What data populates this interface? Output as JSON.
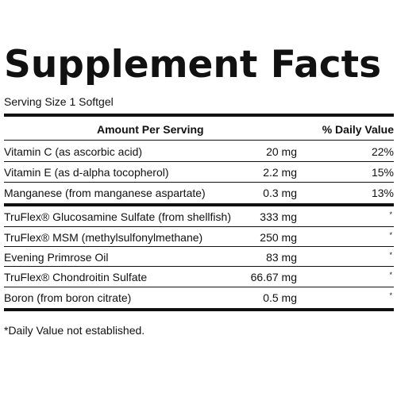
{
  "title": "Supplement Facts",
  "serving_size": "Serving Size 1 Softgel",
  "header": {
    "amount": "Amount Per Serving",
    "dv": "% Daily Value"
  },
  "rows": [
    {
      "name": "Vitamin C (as ascorbic acid)",
      "amount": "20 mg",
      "dv": "22%"
    },
    {
      "name": "Vitamin E (as d-alpha tocopherol)",
      "amount": "2.2 mg",
      "dv": "15%"
    },
    {
      "name": "Manganese (from manganese aspartate)",
      "amount": "0.3 mg",
      "dv": "13%"
    },
    {
      "name": "TruFlex® Glucosamine Sulfate (from shellfish)",
      "amount": "333 mg",
      "dv": "*"
    },
    {
      "name": "TruFlex® MSM (methylsulfonylmethane)",
      "amount": "250 mg",
      "dv": "*"
    },
    {
      "name": "Evening Primrose Oil",
      "amount": "83 mg",
      "dv": "*"
    },
    {
      "name": "TruFlex® Chondroitin Sulfate",
      "amount": "66.67 mg",
      "dv": "*"
    },
    {
      "name": "Boron (from boron citrate)",
      "amount": "0.5 mg",
      "dv": "*"
    }
  ],
  "footnote": "*Daily Value not established."
}
